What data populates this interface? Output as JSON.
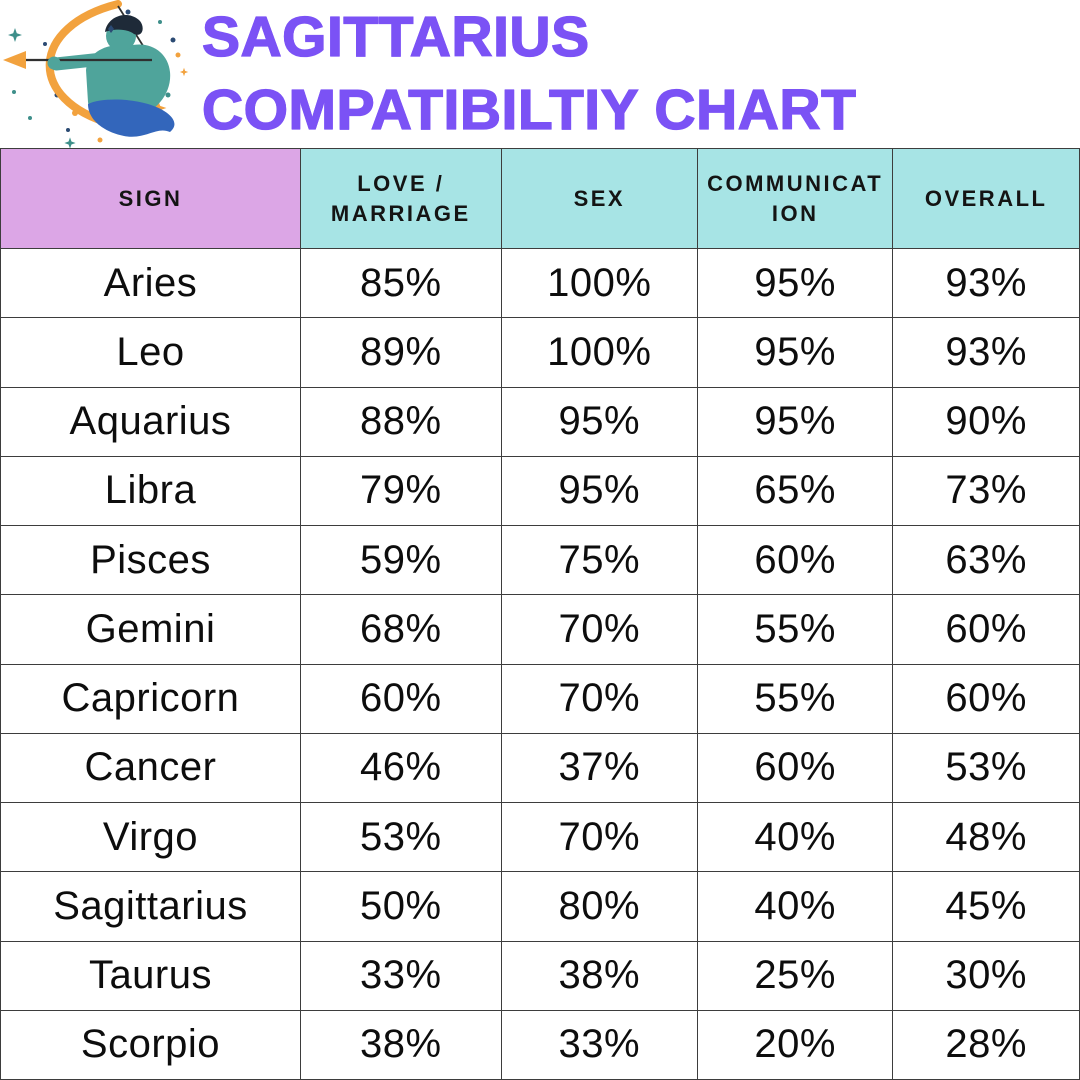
{
  "header": {
    "title_line1": "SAGITTARIUS",
    "title_line2": "COMPATIBILTIY CHART",
    "illustration_alt": "sagittarius-archer"
  },
  "colors": {
    "title_purple": "#7B52F5",
    "sign_header_bg": "#DCA6E6",
    "value_header_bg": "#A7E4E5",
    "grid_border": "#3D3D3D",
    "bow_orange": "#F2A23E",
    "figure_teal": "#4FA49B",
    "cloth_blue": "#3366BB",
    "hair_navy": "#1E2A38",
    "star_navy": "#2B4A73",
    "star_teal": "#3E8F8A"
  },
  "table": {
    "columns": [
      "SIGN",
      "LOVE / MARRIAGE",
      "SEX",
      "COMMUNICATION",
      "OVERALL"
    ],
    "rows": [
      {
        "sign": "Aries",
        "values": [
          "85%",
          "100%",
          "95%",
          "93%"
        ]
      },
      {
        "sign": "Leo",
        "values": [
          "89%",
          "100%",
          "95%",
          "93%"
        ]
      },
      {
        "sign": "Aquarius",
        "values": [
          "88%",
          "95%",
          "95%",
          "90%"
        ]
      },
      {
        "sign": "Libra",
        "values": [
          "79%",
          "95%",
          "65%",
          "73%"
        ]
      },
      {
        "sign": "Pisces",
        "values": [
          "59%",
          "75%",
          "60%",
          "63%"
        ]
      },
      {
        "sign": "Gemini",
        "values": [
          "68%",
          "70%",
          "55%",
          "60%"
        ]
      },
      {
        "sign": "Capricorn",
        "values": [
          "60%",
          "70%",
          "55%",
          "60%"
        ]
      },
      {
        "sign": "Cancer",
        "values": [
          "46%",
          "37%",
          "60%",
          "53%"
        ]
      },
      {
        "sign": "Virgo",
        "values": [
          "53%",
          "70%",
          "40%",
          "48%"
        ]
      },
      {
        "sign": "Sagittarius",
        "values": [
          "50%",
          "80%",
          "40%",
          "45%"
        ]
      },
      {
        "sign": "Taurus",
        "values": [
          "33%",
          "38%",
          "25%",
          "30%"
        ]
      },
      {
        "sign": "Scorpio",
        "values": [
          "38%",
          "33%",
          "20%",
          "28%"
        ]
      }
    ]
  },
  "chart_data": {
    "type": "table",
    "title": "SAGITTARIUS COMPATIBILTIY CHART",
    "columns": [
      "SIGN",
      "LOVE / MARRIAGE",
      "SEX",
      "COMMUNICATION",
      "OVERALL"
    ],
    "unit": "%",
    "rows": [
      [
        "Aries",
        85,
        100,
        95,
        93
      ],
      [
        "Leo",
        89,
        100,
        95,
        93
      ],
      [
        "Aquarius",
        88,
        95,
        95,
        90
      ],
      [
        "Libra",
        79,
        95,
        65,
        73
      ],
      [
        "Pisces",
        59,
        75,
        60,
        63
      ],
      [
        "Gemini",
        68,
        70,
        55,
        60
      ],
      [
        "Capricorn",
        60,
        70,
        55,
        60
      ],
      [
        "Cancer",
        46,
        37,
        60,
        53
      ],
      [
        "Virgo",
        53,
        70,
        40,
        48
      ],
      [
        "Sagittarius",
        50,
        80,
        40,
        45
      ],
      [
        "Taurus",
        33,
        38,
        25,
        30
      ],
      [
        "Scorpio",
        38,
        33,
        20,
        28
      ]
    ]
  }
}
